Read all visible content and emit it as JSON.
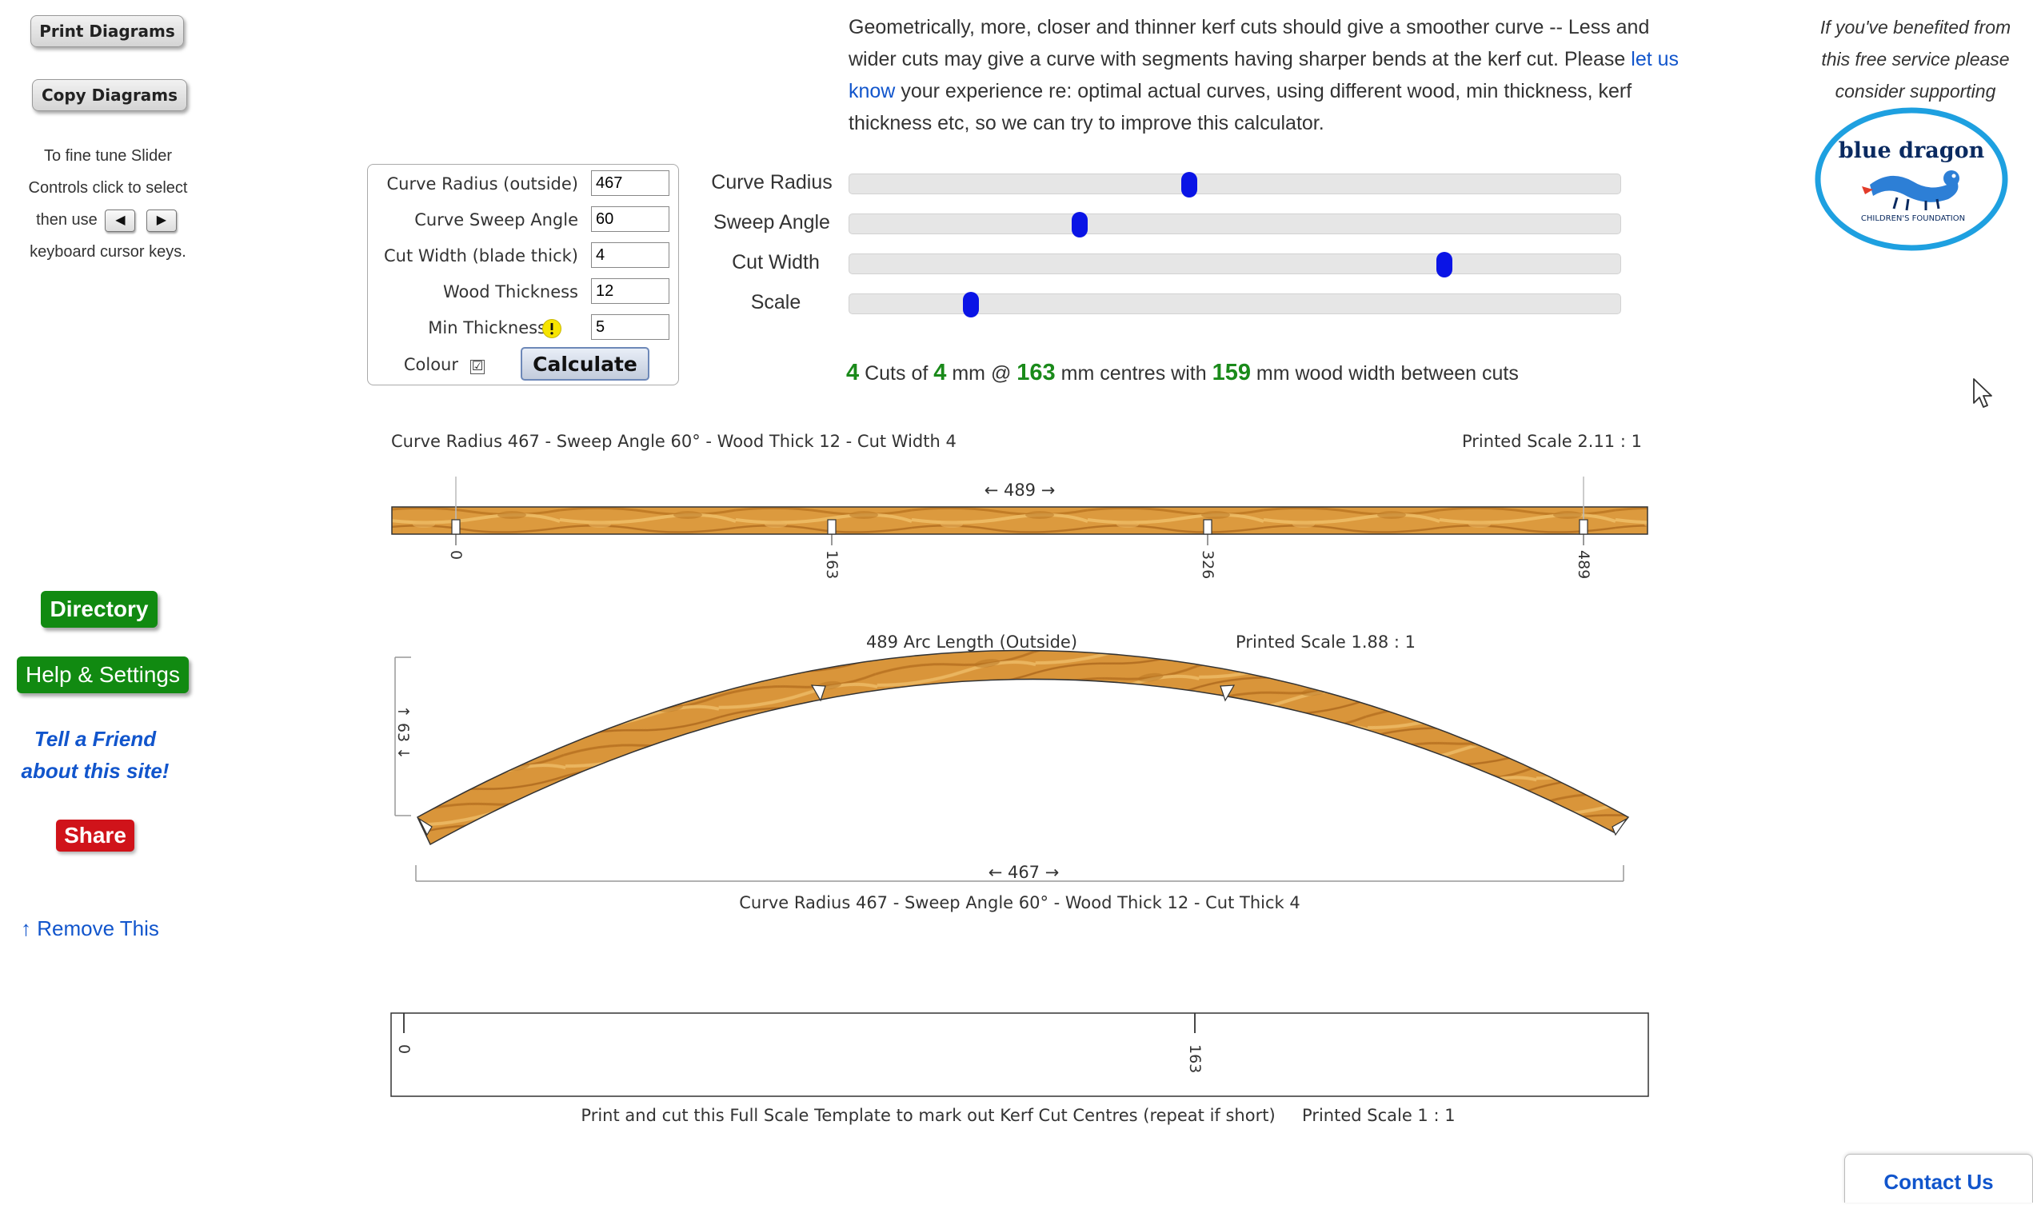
{
  "left_panel": {
    "print_button": "Print Diagrams",
    "copy_button": "Copy Diagrams",
    "tune_help": {
      "line1": "To fine tune Slider",
      "line2": "Controls click to select",
      "line3_prefix": "then use",
      "left_key": "◀",
      "right_key": "▶",
      "line4": "keyboard cursor keys."
    },
    "directory_button": "Directory",
    "help_button": "Help & Settings",
    "tell_friend_line1": "Tell a Friend",
    "tell_friend_line2": "about this site!",
    "share_button": "Share",
    "remove_link": "↑ Remove This"
  },
  "intro": {
    "text_before_link": "Geometrically, more, closer and thinner kerf cuts should give a smoother curve -- Less and wider cuts may give a curve with segments having sharper bends at the kerf cut. Please ",
    "link_text": "let us know",
    "text_after_link": " your experience re: optimal actual curves, using different wood, min thickness, kerf thickness etc, so we can try to improve this calculator."
  },
  "form": {
    "fields": [
      {
        "label": "Curve Radius (outside)",
        "value": "467"
      },
      {
        "label": "Curve Sweep Angle",
        "value": "60"
      },
      {
        "label": "Cut Width (blade thick)",
        "value": "4"
      },
      {
        "label": "Wood Thickness",
        "value": "12"
      },
      {
        "label": "Min Thickness",
        "value": "5"
      }
    ],
    "colour_label": "Colour",
    "colour_checked": "☑",
    "calculate_button": "Calculate"
  },
  "sliders": [
    {
      "label": "Curve Radius",
      "fraction": 0.441
    },
    {
      "label": "Sweep Angle",
      "fraction": 0.299
    },
    {
      "label": "Cut Width",
      "fraction": 0.772
    },
    {
      "label": "Scale",
      "fraction": 0.158
    }
  ],
  "summary": {
    "cuts": "4",
    "cuts_label": "Cuts of",
    "cut_width": "4",
    "mm_at": "mm @",
    "centres": "163",
    "centres_label": "mm centres with",
    "wood_width": "159",
    "wood_width_label": "mm wood width between cuts"
  },
  "diagram1": {
    "caption_left": "Curve Radius 467  -  Sweep Angle 60°  -  Wood Thick 12  -  Cut Width 4",
    "caption_right": "Printed Scale 2.11 : 1",
    "length_label": "← 489 →",
    "marks": [
      "0",
      "163",
      "326",
      "489"
    ]
  },
  "diagram2": {
    "arc_label": "489 Arc Length   (Outside)",
    "scale_label": "Printed Scale 1.88 : 1",
    "height_label": "↑ 63 ↓",
    "chord_label": "← 467 →",
    "caption": "Curve Radius 467  -  Sweep Angle 60°  -  Wood Thick 12  -  Cut Thick 4"
  },
  "template": {
    "marks": [
      "0",
      "163"
    ],
    "caption": "Print and cut this Full Scale Template to mark out Kerf Cut Centres (repeat if short)     Printed Scale 1 : 1"
  },
  "support": {
    "line1": "If you've benefited from",
    "line2": "this free service please",
    "line3": "consider supporting",
    "logo_title": "blue dragon",
    "logo_subtitle": "CHILDREN'S FOUNDATION"
  },
  "contact_button": "Contact Us",
  "colors": {
    "accent_link": "#1155cc",
    "green": "#118a11",
    "red": "#d0131a",
    "slider_handle": "#0a14e6",
    "wood_light": "#e0a043",
    "wood_dark": "#b9741f"
  }
}
